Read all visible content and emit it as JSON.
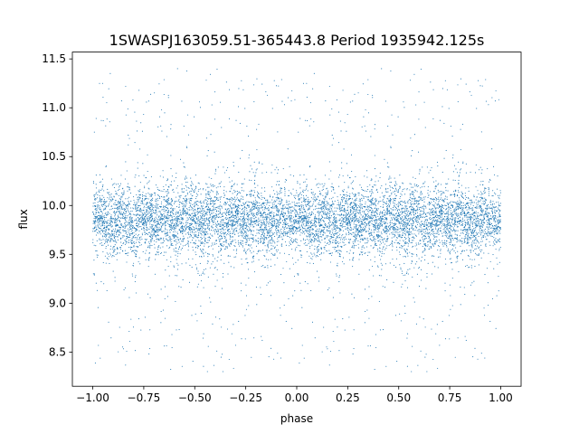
{
  "chart_data": {
    "type": "scatter",
    "title": "1SWASPJ163059.51-365443.8 Period 1935942.125s",
    "xlabel": "phase",
    "ylabel": "flux",
    "xlim": [
      -1.1,
      1.1
    ],
    "ylim": [
      8.15,
      11.57
    ],
    "xticks": [
      -1.0,
      -0.75,
      -0.5,
      -0.25,
      0.0,
      0.25,
      0.5,
      0.75,
      1.0
    ],
    "xtick_labels": [
      "−1.00",
      "−0.75",
      "−0.50",
      "−0.25",
      "0.00",
      "0.25",
      "0.50",
      "0.75",
      "1.00"
    ],
    "yticks": [
      8.5,
      9.0,
      9.5,
      10.0,
      10.5,
      11.0,
      11.5
    ],
    "ytick_labels": [
      "8.5",
      "9.0",
      "9.5",
      "10.0",
      "10.5",
      "11.0",
      "11.5"
    ],
    "marker_color": "#1f77b4",
    "x_range": [
      -1.0,
      1.0
    ],
    "baseline_flux": 9.85,
    "typical_scatter_range": [
      9.55,
      10.15
    ],
    "extreme_flux_range": [
      8.3,
      11.4
    ],
    "phase_folded_mirror": true,
    "grid": false,
    "legend": "none",
    "approx_point_count": 9000
  }
}
